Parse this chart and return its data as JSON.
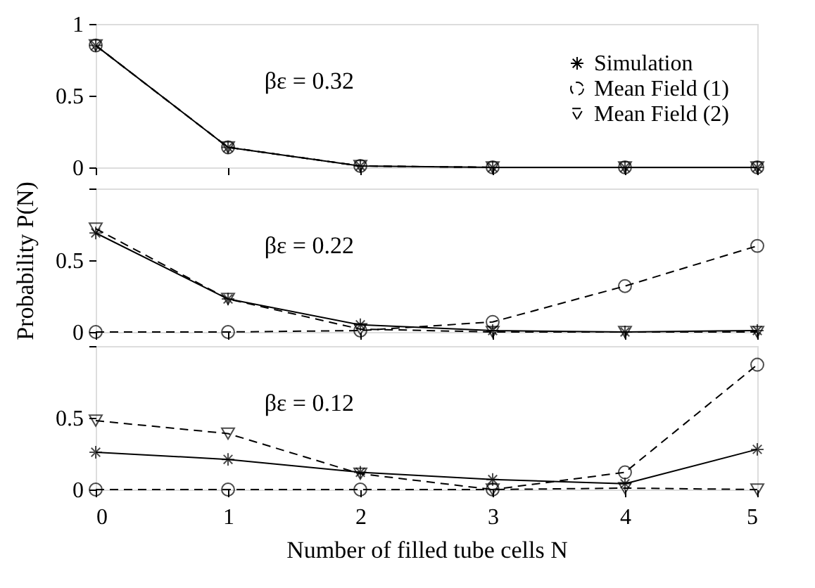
{
  "chart_data": [
    {
      "type": "line",
      "x": [
        0,
        1,
        2,
        3,
        4,
        5
      ],
      "xlim": [
        0,
        5
      ],
      "xticks": [
        0,
        1,
        2,
        3,
        4,
        5
      ],
      "ylim": [
        0,
        1
      ],
      "yticks": [
        0,
        0.5,
        1
      ],
      "tick_labels": "y",
      "grid": false,
      "legend": "top right",
      "annotations": [
        "βε = 0.32"
      ],
      "series": [
        {
          "name": "Simulation",
          "color": "#000000",
          "marker": "cross",
          "line_style": "solid",
          "values": [
            0.85,
            0.14,
            0.01,
            0,
            0,
            0
          ]
        },
        {
          "name": "Mean Field (1)",
          "color": "#000000",
          "marker": "circle",
          "line_style": "dashed",
          "values": [
            0.85,
            0.14,
            0.01,
            0,
            0,
            0
          ]
        },
        {
          "name": "Mean Field (2)",
          "color": "#000000",
          "marker": "triangle",
          "line_style": "dashed",
          "values": [
            0.85,
            0.14,
            0.01,
            0,
            0,
            0
          ]
        }
      ]
    },
    {
      "type": "line",
      "x": [
        0,
        1,
        2,
        3,
        4,
        5
      ],
      "xlim": [
        0,
        5
      ],
      "xticks": [
        0,
        1,
        2,
        3,
        4,
        5
      ],
      "ylim": [
        0,
        1
      ],
      "yticks": [
        0,
        0.5,
        {
          "value": 1,
          "label": null
        }
      ],
      "tick_labels": "y",
      "grid": false,
      "ylabel": "Probability P(N)",
      "annotations": [
        "βε = 0.22"
      ],
      "series": [
        {
          "color": "#000000",
          "marker": "cross",
          "line_style": "solid",
          "values": [
            0.69,
            0.23,
            0.05,
            0.01,
            0,
            0.01
          ]
        },
        {
          "color": "#000000",
          "marker": "circle",
          "line_style": "dashed",
          "values": [
            0,
            0,
            0.01,
            0.07,
            0.32,
            0.6
          ]
        },
        {
          "color": "#000000",
          "marker": "triangle",
          "line_style": "dashed",
          "values": [
            0.72,
            0.23,
            0.02,
            0,
            0,
            0
          ]
        }
      ]
    },
    {
      "type": "line",
      "x": [
        0,
        1,
        2,
        3,
        4,
        5
      ],
      "xlim": [
        0,
        5
      ],
      "xticks": [
        0,
        1,
        2,
        3,
        4,
        5
      ],
      "ylim": [
        0,
        1
      ],
      "yticks": [
        0,
        0.5,
        {
          "value": 1,
          "label": null
        }
      ],
      "grid": false,
      "xlabel": "Number of filled tube cells N",
      "annotations": [
        "βε = 0.12"
      ],
      "series": [
        {
          "color": "#000000",
          "marker": "cross",
          "line_style": "solid",
          "values": [
            0.26,
            0.21,
            0.12,
            0.07,
            0.04,
            0.28
          ]
        },
        {
          "color": "#000000",
          "marker": "circle",
          "line_style": "dashed",
          "values": [
            0,
            0,
            0,
            0,
            0.12,
            0.87
          ]
        },
        {
          "color": "#000000",
          "marker": "triangle",
          "line_style": "dashed",
          "values": [
            0.48,
            0.39,
            0.11,
            0,
            0.01,
            0
          ]
        }
      ]
    }
  ]
}
